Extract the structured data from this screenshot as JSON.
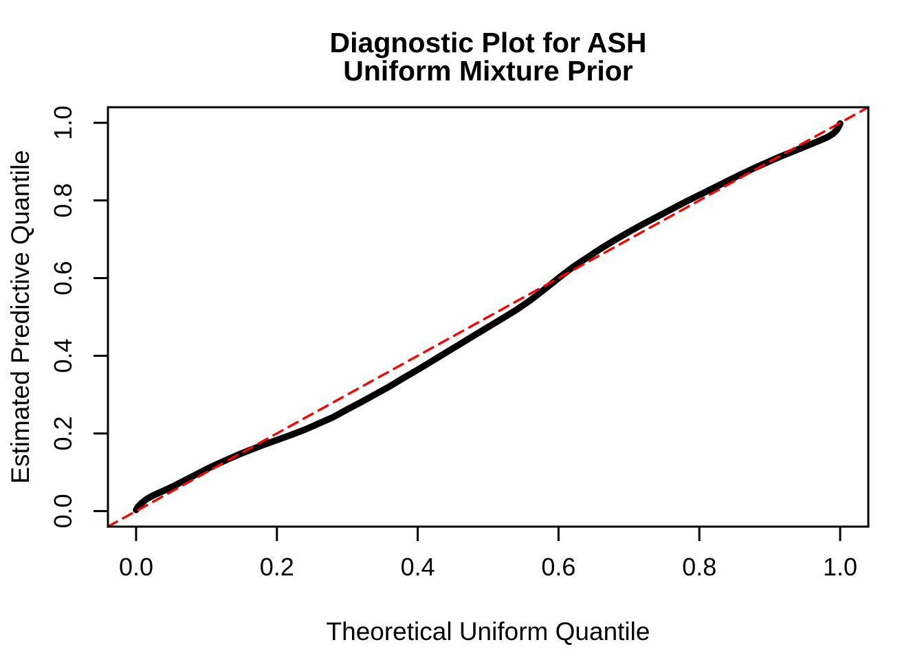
{
  "figure": {
    "background_color": "#FFFFFF",
    "axis_color": "#000000"
  },
  "chart_data": {
    "type": "scatter",
    "title": "Diagnostic Plot for ASH\nUniform Mixture Prior",
    "title_lines": [
      "Diagnostic Plot for ASH",
      "Uniform Mixture Prior"
    ],
    "xlabel": "Theoretical Uniform Quantile",
    "ylabel": "Estimated Predictive Quantile",
    "xlim": [
      -0.04,
      1.04
    ],
    "ylim": [
      -0.04,
      1.04
    ],
    "grid": false,
    "legend": "none",
    "x_ticks": [
      0.0,
      0.2,
      0.4,
      0.6,
      0.8,
      1.0
    ],
    "y_ticks": [
      0.0,
      0.2,
      0.4,
      0.6,
      0.8,
      1.0
    ],
    "x_tick_labels": [
      "0.0",
      "0.2",
      "0.4",
      "0.6",
      "0.8",
      "1.0"
    ],
    "y_tick_labels": [
      "0.0",
      "0.2",
      "0.4",
      "0.6",
      "0.8",
      "1.0"
    ],
    "series": [
      {
        "name": "estimated-predictive-quantiles",
        "render": "dense-point-curve",
        "color": "#000000",
        "line_width": 9.5,
        "points": [
          [
            0.0,
            0.003
          ],
          [
            0.003,
            0.012
          ],
          [
            0.008,
            0.021
          ],
          [
            0.015,
            0.031
          ],
          [
            0.025,
            0.041
          ],
          [
            0.04,
            0.053
          ],
          [
            0.055,
            0.066
          ],
          [
            0.07,
            0.08
          ],
          [
            0.085,
            0.094
          ],
          [
            0.1,
            0.108
          ],
          [
            0.115,
            0.121
          ],
          [
            0.13,
            0.133
          ],
          [
            0.145,
            0.145
          ],
          [
            0.16,
            0.156
          ],
          [
            0.18,
            0.17
          ],
          [
            0.2,
            0.183
          ],
          [
            0.22,
            0.196
          ],
          [
            0.24,
            0.21
          ],
          [
            0.26,
            0.226
          ],
          [
            0.28,
            0.242
          ],
          [
            0.3,
            0.262
          ],
          [
            0.32,
            0.281
          ],
          [
            0.34,
            0.301
          ],
          [
            0.36,
            0.321
          ],
          [
            0.38,
            0.343
          ],
          [
            0.4,
            0.364
          ],
          [
            0.42,
            0.386
          ],
          [
            0.44,
            0.408
          ],
          [
            0.46,
            0.43
          ],
          [
            0.48,
            0.452
          ],
          [
            0.5,
            0.474
          ],
          [
            0.52,
            0.496
          ],
          [
            0.54,
            0.518
          ],
          [
            0.56,
            0.543
          ],
          [
            0.58,
            0.571
          ],
          [
            0.6,
            0.6
          ],
          [
            0.62,
            0.628
          ],
          [
            0.64,
            0.652
          ],
          [
            0.66,
            0.676
          ],
          [
            0.68,
            0.698
          ],
          [
            0.7,
            0.719
          ],
          [
            0.72,
            0.739
          ],
          [
            0.74,
            0.758
          ],
          [
            0.76,
            0.777
          ],
          [
            0.78,
            0.796
          ],
          [
            0.8,
            0.814
          ],
          [
            0.82,
            0.832
          ],
          [
            0.84,
            0.85
          ],
          [
            0.86,
            0.868
          ],
          [
            0.88,
            0.885
          ],
          [
            0.9,
            0.901
          ],
          [
            0.915,
            0.913
          ],
          [
            0.93,
            0.924
          ],
          [
            0.945,
            0.935
          ],
          [
            0.96,
            0.946
          ],
          [
            0.972,
            0.955
          ],
          [
            0.982,
            0.963
          ],
          [
            0.99,
            0.972
          ],
          [
            0.995,
            0.981
          ],
          [
            0.998,
            0.99
          ],
          [
            1.0,
            0.998
          ]
        ]
      },
      {
        "name": "identity-reference-line",
        "render": "dashed-line",
        "color": "#FF0000",
        "line_width": 3.4,
        "dash_pattern": "15 10",
        "points": [
          [
            -0.04,
            -0.04
          ],
          [
            1.04,
            1.04
          ]
        ]
      }
    ]
  }
}
